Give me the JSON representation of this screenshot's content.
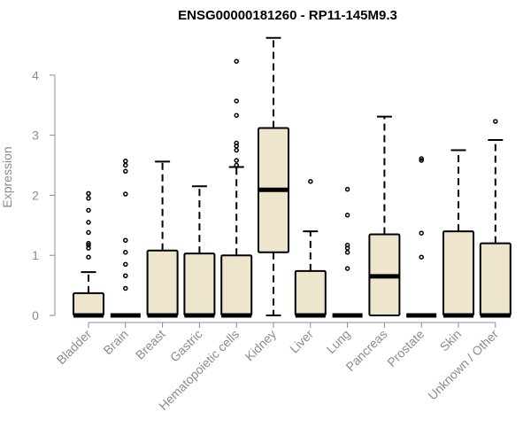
{
  "chart_data": {
    "type": "boxplot",
    "title": "ENSG00000181260 - RP11-145M9.3",
    "xlabel": "",
    "ylabel": "Expression",
    "ylim": [
      0,
      4.65
    ],
    "yticks": [
      0,
      1,
      2,
      3,
      4
    ],
    "grid": false,
    "legend": "none",
    "box_fill": "#ede6cc",
    "stroke_color": "#000000",
    "axis_color": "#8c8c8c",
    "categories": [
      "Bladder",
      "Brain",
      "Breast",
      "Gastric",
      "Hematopoietic cells",
      "Kidney",
      "Liver",
      "Lung",
      "Pancreas",
      "Prostate",
      "Skin",
      "Unknown / Other"
    ],
    "boxes": [
      {
        "category": "Bladder",
        "min": 0,
        "q1": 0,
        "median": 0,
        "q3": 0.37,
        "max": 0.72,
        "outliers": [
          0.97,
          1.12,
          1.17,
          1.2,
          1.38,
          1.55,
          1.75,
          1.95,
          2.03
        ]
      },
      {
        "category": "Brain",
        "min": 0,
        "q1": 0,
        "median": 0,
        "q3": 0,
        "max": 0,
        "outliers": [
          0.45,
          0.66,
          0.85,
          1.05,
          1.25,
          2.02,
          2.4,
          2.5,
          2.57
        ]
      },
      {
        "category": "Breast",
        "min": 0,
        "q1": 0,
        "median": 0,
        "q3": 1.08,
        "max": 2.56,
        "outliers": []
      },
      {
        "category": "Gastric",
        "min": 0,
        "q1": 0,
        "median": 0,
        "q3": 1.03,
        "max": 2.15,
        "outliers": []
      },
      {
        "category": "Hematopoietic cells",
        "min": 0,
        "q1": 0,
        "median": 0,
        "q3": 1.0,
        "max": 2.47,
        "outliers": [
          2.5,
          2.58,
          2.75,
          2.82,
          2.87,
          3.33,
          3.57,
          4.23
        ]
      },
      {
        "category": "Kidney",
        "min": 0,
        "q1": 1.05,
        "median": 2.09,
        "q3": 3.12,
        "max": 4.62,
        "outliers": []
      },
      {
        "category": "Liver",
        "min": 0,
        "q1": 0,
        "median": 0,
        "q3": 0.74,
        "max": 1.4,
        "outliers": [
          2.23
        ]
      },
      {
        "category": "Lung",
        "min": 0,
        "q1": 0,
        "median": 0,
        "q3": 0,
        "max": 0,
        "outliers": [
          0.78,
          1.05,
          1.12,
          1.17,
          1.67,
          2.1
        ]
      },
      {
        "category": "Pancreas",
        "min": 0,
        "q1": 0,
        "median": 0.65,
        "q3": 1.35,
        "max": 3.31,
        "outliers": []
      },
      {
        "category": "Prostate",
        "min": 0,
        "q1": 0,
        "median": 0,
        "q3": 0,
        "max": 0,
        "outliers": [
          0.97,
          1.37,
          2.58,
          2.61
        ]
      },
      {
        "category": "Skin",
        "min": 0,
        "q1": 0,
        "median": 0,
        "q3": 1.4,
        "max": 2.75,
        "outliers": []
      },
      {
        "category": "Unknown / Other",
        "min": 0,
        "q1": 0,
        "median": 0,
        "q3": 1.2,
        "max": 2.92,
        "outliers": [
          3.23
        ]
      }
    ]
  }
}
